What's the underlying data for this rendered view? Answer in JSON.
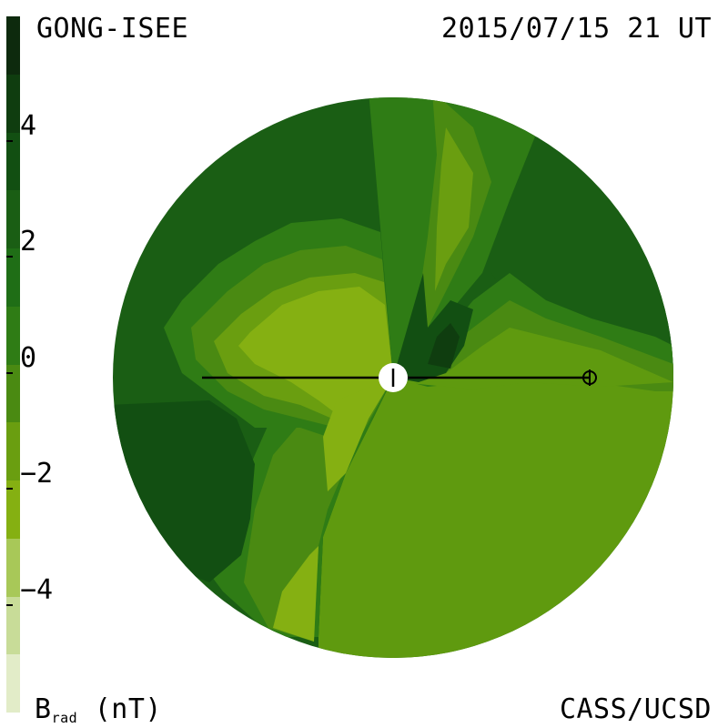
{
  "header": {
    "source": "GONG-ISEE",
    "timestamp": "2015/07/15 21 UT"
  },
  "footer": {
    "credit": "CASS/UCSD",
    "quantity_main": "B",
    "quantity_sub": "rad",
    "unit": "(nT)"
  },
  "colorbar": {
    "ticks": [
      {
        "value": 4,
        "label": "4"
      },
      {
        "value": 2,
        "label": "2"
      },
      {
        "value": 0,
        "label": "0"
      },
      {
        "value": -2,
        "label": "−2"
      },
      {
        "value": -4,
        "label": "−4"
      }
    ],
    "range": [
      -6,
      6
    ],
    "levels": [
      {
        "min": 5,
        "max": 6,
        "color": "#0d2a0d"
      },
      {
        "min": 4,
        "max": 5,
        "color": "#0f3d0f"
      },
      {
        "min": 3,
        "max": 4,
        "color": "#124f12"
      },
      {
        "min": 2,
        "max": 3,
        "color": "#1a5e14"
      },
      {
        "min": 1,
        "max": 2,
        "color": "#1f6e16"
      },
      {
        "min": 0,
        "max": 1,
        "color": "#2f7c15"
      },
      {
        "min": -1,
        "max": 0,
        "color": "#4a8a12"
      },
      {
        "min": -2,
        "max": -1,
        "color": "#6a9e10"
      },
      {
        "min": -3,
        "max": -2,
        "color": "#85b012"
      },
      {
        "min": -4,
        "max": -3,
        "color": "#a8c858"
      },
      {
        "min": -5,
        "max": -4,
        "color": "#c8dc98"
      },
      {
        "min": -6,
        "max": -5,
        "color": "#e2ecc8"
      }
    ]
  },
  "chart_data": {
    "type": "heatmap",
    "title": "",
    "quantity": "Brad",
    "unit": "nT",
    "projection": "polar view centered on Sun",
    "observer_marker": "Earth (circle with cross) on the right of the Sun-Earth line"
  }
}
